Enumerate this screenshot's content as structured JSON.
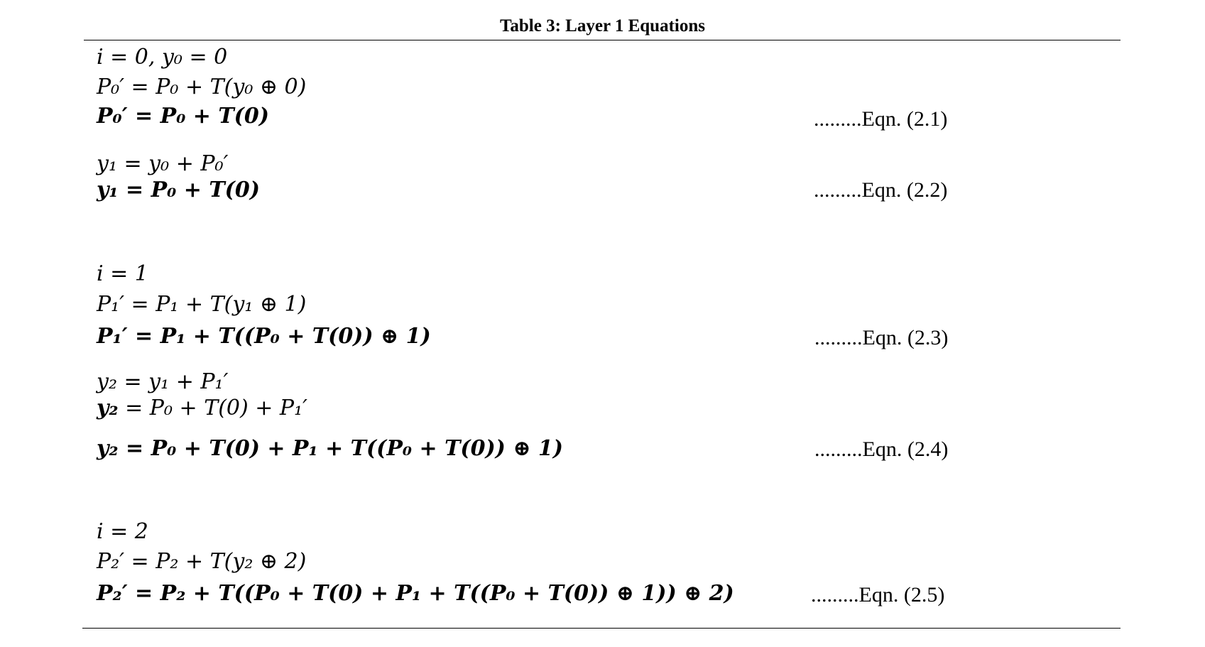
{
  "table": {
    "title": "Table 3: Layer 1 Equations"
  },
  "equations": [
    {
      "text": "i = 0, y₀ = 0",
      "bold": false
    },
    {
      "text": "P₀′ =  P₀ + T(y₀ ⊕ 0)",
      "bold": false
    },
    {
      "text": "P₀′ =  P₀ + T(0)",
      "bold": true,
      "label": ".........Eqn. (2.1)"
    },
    {
      "text": "y₁ = y₀  +  P₀′",
      "bold": false
    },
    {
      "text": "y₁ = P₀  +  T(0)",
      "bold": true,
      "label": ".........Eqn. (2.2)"
    },
    {
      "text": "i = 1",
      "bold": false
    },
    {
      "text": "P₁′ =  P₁ + T(y₁ ⊕ 1)",
      "bold": false
    },
    {
      "text": "P₁′ =  P₁ + T((P₀  +  T(0)) ⊕ 1)",
      "bold": true,
      "label": ".........Eqn. (2.3)"
    },
    {
      "text": "y₂ = y₁  +  P₁′",
      "bold": false
    },
    {
      "text": "y₂ = P₀ + T(0) + P₁′",
      "bold": false,
      "bold_lhs": "y₂",
      "rest": " = P₀ + T(0) + P₁′"
    },
    {
      "text": "y₂ = P₀ + T(0) + P₁ + T((P₀  +  T(0)) ⊕ 1)",
      "bold": true,
      "label": ".........Eqn. (2.4)"
    },
    {
      "text": "i = 2",
      "bold": false
    },
    {
      "text": "P₂′ =  P₂ + T(y₂ ⊕ 2)",
      "bold": false
    },
    {
      "text": "P₂′ =  P₂ + T((P₀ + T(0) + P₁ + T((P₀  +  T(0)) ⊕ 1)) ⊕ 2)",
      "bold": true,
      "label": ".........Eqn. (2.5)"
    }
  ]
}
